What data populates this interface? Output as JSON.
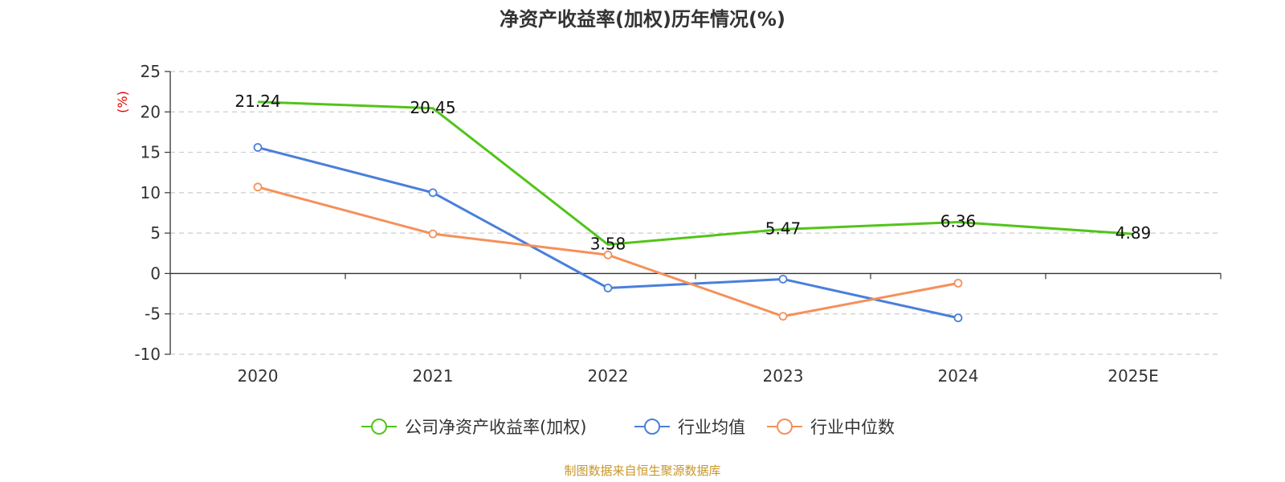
{
  "chart_data": {
    "type": "line",
    "title": "净资产收益率(加权)历年情况(%)",
    "ylabel": "(%)",
    "ylabel_color": "#e60000",
    "categories": [
      "2020",
      "2021",
      "2022",
      "2023",
      "2024",
      "2025E"
    ],
    "yticks": [
      25,
      20,
      15,
      10,
      5,
      0,
      -5,
      -10
    ],
    "ylim": [
      -10,
      25
    ],
    "grid": true,
    "legend_position": "bottom",
    "series": [
      {
        "name": "公司净资产收益率(加权)",
        "color": "#52c41a",
        "values": [
          21.24,
          20.45,
          3.58,
          5.47,
          6.36,
          4.89
        ],
        "labels": [
          "21.24",
          "20.45",
          "3.58",
          "5.47",
          "6.36",
          "4.89"
        ],
        "show_labels": true,
        "show_markers": false
      },
      {
        "name": "行业均值",
        "color": "#4a7fdb",
        "values": [
          15.6,
          10.0,
          -1.8,
          -0.7,
          -5.5,
          null
        ],
        "show_labels": false,
        "show_markers": true
      },
      {
        "name": "行业中位数",
        "color": "#f5905a",
        "values": [
          10.7,
          4.9,
          2.3,
          -5.3,
          -1.2,
          null
        ],
        "show_labels": false,
        "show_markers": true
      }
    ],
    "source": "制图数据来自恒生聚源数据库",
    "source_color": "#c8962a"
  }
}
